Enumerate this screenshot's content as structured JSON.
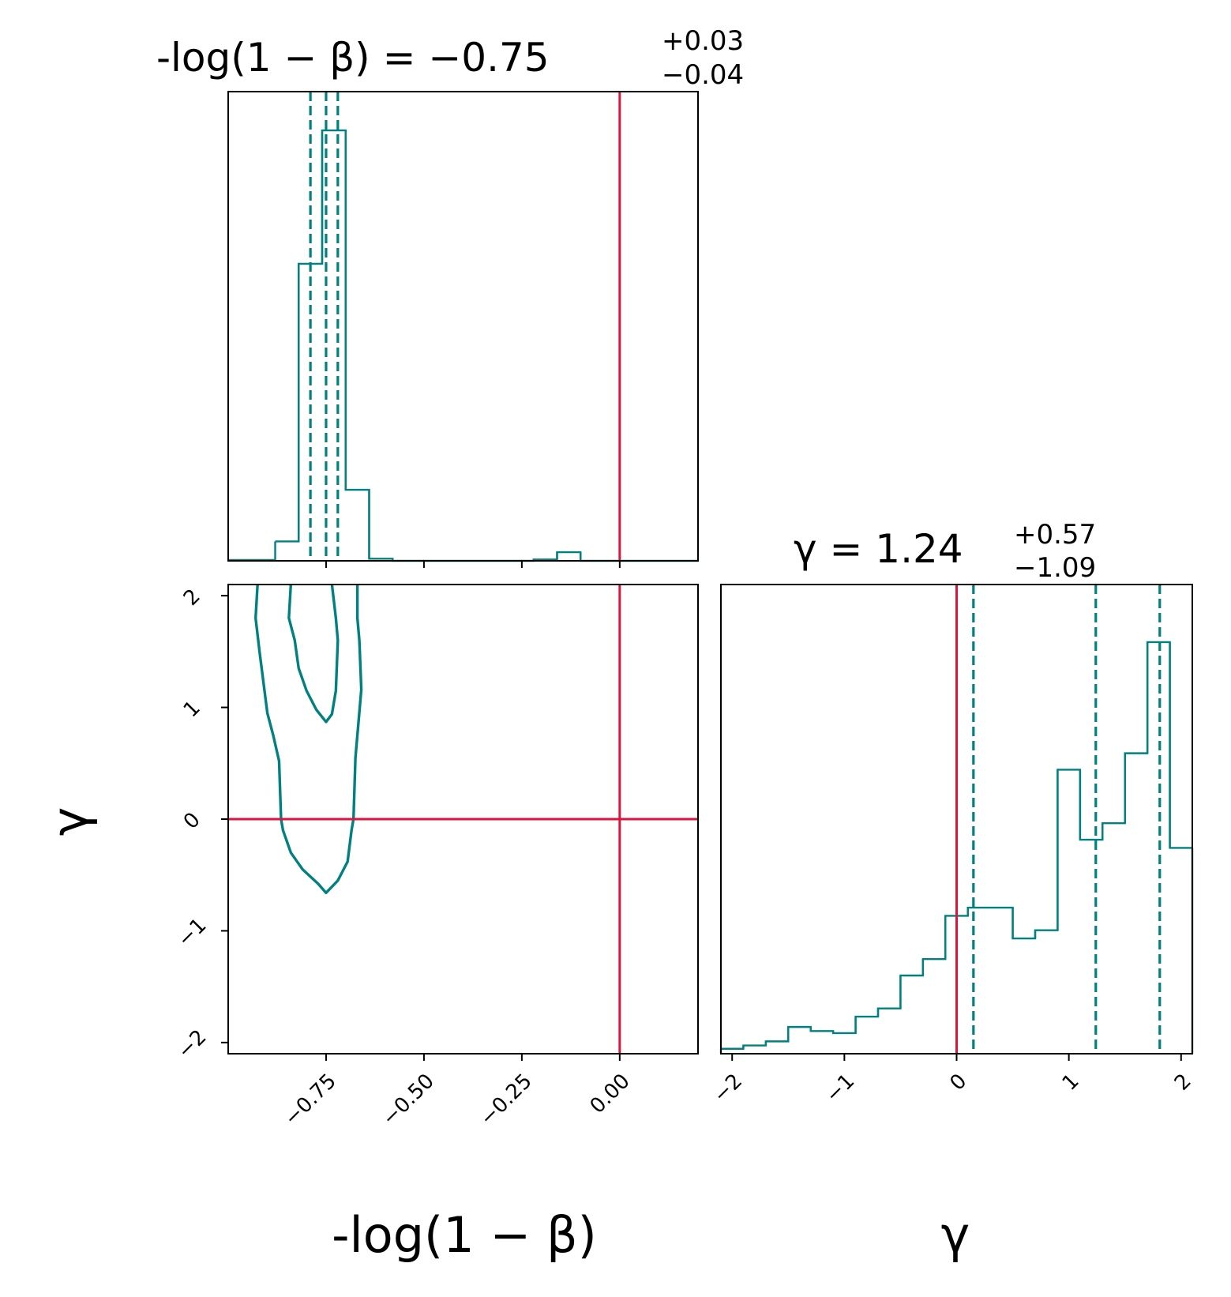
{
  "chart_data": [
    {
      "type": "histogram",
      "panel": "beta-marginal",
      "title": {
        "lhs": "-log(1 − β) = ",
        "value": "−0.75",
        "upper": "+0.03",
        "lower": "−0.04"
      },
      "xlim": [
        -1.0,
        0.2
      ],
      "xticks": [
        "−0.75",
        "−0.50",
        "−0.25",
        "0.00"
      ],
      "xtick_values": [
        -0.75,
        -0.5,
        -0.25,
        0.0
      ],
      "ylim": [
        0,
        1.09
      ],
      "bins": [
        {
          "x0": -0.88,
          "x1": -0.82,
          "y": 0.045
        },
        {
          "x0": -0.82,
          "x1": -0.76,
          "y": 0.69
        },
        {
          "x0": -0.76,
          "x1": -0.7,
          "y": 1.0
        },
        {
          "x0": -0.7,
          "x1": -0.64,
          "y": 0.165
        },
        {
          "x0": -0.64,
          "x1": -0.58,
          "y": 0.005
        },
        {
          "x0": -0.58,
          "x1": -0.22,
          "y": 0.0
        },
        {
          "x0": -0.22,
          "x1": -0.16,
          "y": 0.003
        },
        {
          "x0": -0.16,
          "x1": -0.1,
          "y": 0.02
        },
        {
          "x0": -0.1,
          "x1": 0.2,
          "y": 0.0
        }
      ],
      "quantiles": [
        -0.79,
        -0.75,
        -0.72
      ],
      "truth": 0.0
    },
    {
      "type": "contour",
      "panel": "joint",
      "xlim": [
        -1.0,
        0.2
      ],
      "ylim": [
        -2.1,
        2.1
      ],
      "yticks": [
        "−2",
        "−1",
        "0",
        "1",
        "2"
      ],
      "ytick_values": [
        -2,
        -1,
        0,
        1,
        2
      ],
      "ylabel": "γ",
      "xlabel": "-log(1 − β)",
      "contours": [
        {
          "level": "inner",
          "points": [
            [
              -0.84,
              2.1
            ],
            [
              -0.845,
              1.8
            ],
            [
              -0.83,
              1.6
            ],
            [
              -0.82,
              1.35
            ],
            [
              -0.8,
              1.15
            ],
            [
              -0.775,
              0.98
            ],
            [
              -0.75,
              0.87
            ],
            [
              -0.735,
              0.94
            ],
            [
              -0.725,
              1.15
            ],
            [
              -0.72,
              1.6
            ],
            [
              -0.725,
              1.8
            ],
            [
              -0.735,
              2.1
            ]
          ]
        },
        {
          "level": "outer",
          "points": [
            [
              -0.925,
              2.1
            ],
            [
              -0.93,
              1.8
            ],
            [
              -0.92,
              1.5
            ],
            [
              -0.9,
              0.95
            ],
            [
              -0.885,
              0.75
            ],
            [
              -0.87,
              0.52
            ],
            [
              -0.865,
              0.0
            ],
            [
              -0.86,
              -0.1
            ],
            [
              -0.84,
              -0.3
            ],
            [
              -0.81,
              -0.45
            ],
            [
              -0.77,
              -0.58
            ],
            [
              -0.75,
              -0.66
            ],
            [
              -0.72,
              -0.55
            ],
            [
              -0.695,
              -0.38
            ],
            [
              -0.685,
              -0.1
            ],
            [
              -0.68,
              0.0
            ],
            [
              -0.675,
              0.55
            ],
            [
              -0.66,
              1.16
            ],
            [
              -0.665,
              1.6
            ],
            [
              -0.67,
              1.8
            ],
            [
              -0.67,
              2.1
            ]
          ]
        }
      ],
      "truth": {
        "x": 0.0,
        "y": 0.0
      }
    },
    {
      "type": "histogram",
      "panel": "gamma-marginal",
      "title": {
        "lhs": "γ = ",
        "value": "1.24",
        "upper": "+0.57",
        "lower": "−1.09"
      },
      "xlim": [
        -2.1,
        2.1
      ],
      "xticks": [
        "−2",
        "−1",
        "0",
        "1",
        "2"
      ],
      "xtick_values": [
        -2,
        -1,
        0,
        1,
        2
      ],
      "xlabel": "γ",
      "ylim": [
        0,
        1.14
      ],
      "bins": [
        {
          "x0": -2.1,
          "x1": -1.9,
          "y": 0.012
        },
        {
          "x0": -1.9,
          "x1": -1.7,
          "y": 0.02
        },
        {
          "x0": -1.7,
          "x1": -1.5,
          "y": 0.03
        },
        {
          "x0": -1.5,
          "x1": -1.3,
          "y": 0.065
        },
        {
          "x0": -1.3,
          "x1": -1.1,
          "y": 0.055
        },
        {
          "x0": -1.1,
          "x1": -0.9,
          "y": 0.05
        },
        {
          "x0": -0.9,
          "x1": -0.7,
          "y": 0.09
        },
        {
          "x0": -0.7,
          "x1": -0.5,
          "y": 0.11
        },
        {
          "x0": -0.5,
          "x1": -0.3,
          "y": 0.19
        },
        {
          "x0": -0.3,
          "x1": -0.1,
          "y": 0.23
        },
        {
          "x0": -0.1,
          "x1": 0.1,
          "y": 0.335
        },
        {
          "x0": 0.1,
          "x1": 0.3,
          "y": 0.355
        },
        {
          "x0": 0.3,
          "x1": 0.5,
          "y": 0.355
        },
        {
          "x0": 0.5,
          "x1": 0.7,
          "y": 0.28
        },
        {
          "x0": 0.7,
          "x1": 0.9,
          "y": 0.3
        },
        {
          "x0": 0.9,
          "x1": 1.1,
          "y": 0.69
        },
        {
          "x0": 1.1,
          "x1": 1.3,
          "y": 0.52
        },
        {
          "x0": 1.3,
          "x1": 1.5,
          "y": 0.56
        },
        {
          "x0": 1.5,
          "x1": 1.7,
          "y": 0.73
        },
        {
          "x0": 1.7,
          "x1": 1.9,
          "y": 1.0
        },
        {
          "x0": 1.9,
          "x1": 2.1,
          "y": 0.5
        }
      ],
      "quantiles": [
        0.15,
        1.24,
        1.81
      ],
      "truth": 0.0
    }
  ],
  "colors": {
    "posterior": "#008080",
    "truth": "#dc143c",
    "axes": "#000000"
  }
}
